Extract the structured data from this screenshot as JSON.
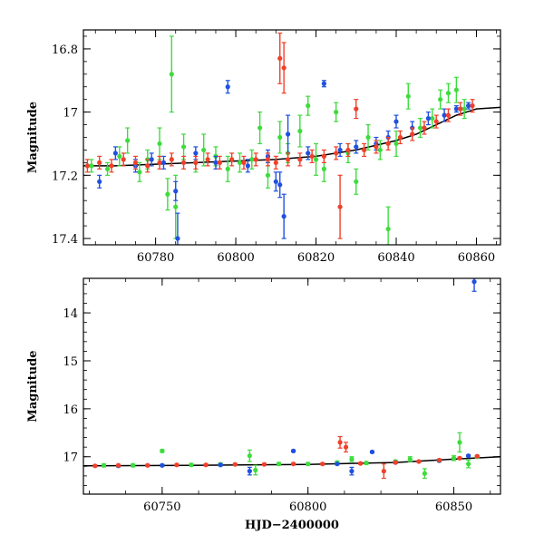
{
  "colors": {
    "green": "#3ddc3d",
    "blue": "#1f50e0",
    "red": "#f0402a",
    "model": "#000000"
  },
  "chart_data": [
    {
      "type": "scatter",
      "title": "",
      "xlabel": "",
      "ylabel": "Magnitude",
      "xlim": [
        60762,
        60866
      ],
      "ylim": [
        17.42,
        16.74
      ],
      "y_inverted": true,
      "x_ticks": [
        60780,
        60800,
        60820,
        60840,
        60860
      ],
      "x_tick_labels": [
        "60780",
        "60800",
        "60820",
        "60840",
        "60860"
      ],
      "y_ticks": [
        16.8,
        17,
        17.2,
        17.4
      ],
      "y_tick_labels": [
        "16.8",
        "17",
        "17.2",
        "17.4"
      ],
      "grid": false,
      "model_curve": {
        "x": [
          60762,
          60770,
          60780,
          60790,
          60800,
          60810,
          60820,
          60830,
          60840,
          60845,
          60850,
          60855,
          60860,
          60866
        ],
        "y": [
          17.17,
          17.17,
          17.165,
          17.16,
          17.155,
          17.15,
          17.14,
          17.12,
          17.09,
          17.07,
          17.04,
          17.01,
          16.99,
          16.985
        ]
      },
      "series": [
        {
          "color": "green",
          "points": [
            [
              60764,
              17.17,
              0.02
            ],
            [
              60768,
              17.18,
              0.02
            ],
            [
              60771,
              17.14,
              0.03
            ],
            [
              60773,
              17.09,
              0.04
            ],
            [
              60776,
              17.19,
              0.03
            ],
            [
              60778,
              17.15,
              0.03
            ],
            [
              60781,
              17.1,
              0.05
            ],
            [
              60783,
              17.26,
              0.05
            ],
            [
              60784,
              16.88,
              0.12
            ],
            [
              60785,
              17.3,
              0.1
            ],
            [
              60787,
              17.11,
              0.04
            ],
            [
              60790,
              17.16,
              0.03
            ],
            [
              60792,
              17.12,
              0.05
            ],
            [
              60795,
              17.14,
              0.03
            ],
            [
              60798,
              17.18,
              0.04
            ],
            [
              60801,
              17.16,
              0.03
            ],
            [
              60804,
              17.15,
              0.03
            ],
            [
              60806,
              17.05,
              0.05
            ],
            [
              60808,
              17.2,
              0.04
            ],
            [
              60811,
              17.08,
              0.05
            ],
            [
              60813,
              17.13,
              0.03
            ],
            [
              60816,
              17.06,
              0.05
            ],
            [
              60818,
              16.98,
              0.03
            ],
            [
              60820,
              17.15,
              0.05
            ],
            [
              60822,
              17.18,
              0.04
            ],
            [
              60825,
              17.0,
              0.03
            ],
            [
              60828,
              17.13,
              0.03
            ],
            [
              60830,
              17.22,
              0.04
            ],
            [
              60833,
              17.08,
              0.04
            ],
            [
              60836,
              17.12,
              0.03
            ],
            [
              60838,
              17.37,
              0.07
            ],
            [
              60840,
              17.1,
              0.04
            ],
            [
              60843,
              16.95,
              0.04
            ],
            [
              60846,
              17.05,
              0.03
            ],
            [
              60849,
              17.02,
              0.03
            ],
            [
              60851,
              16.96,
              0.03
            ],
            [
              60853,
              16.94,
              0.03
            ],
            [
              60855,
              16.93,
              0.04
            ],
            [
              60857,
              16.99,
              0.03
            ]
          ]
        },
        {
          "color": "blue",
          "points": [
            [
              60766,
              17.22,
              0.02
            ],
            [
              60770,
              17.13,
              0.02
            ],
            [
              60775,
              17.17,
              0.02
            ],
            [
              60779,
              17.15,
              0.02
            ],
            [
              60782,
              17.16,
              0.02
            ],
            [
              60785,
              17.25,
              0.03
            ],
            [
              60785.5,
              17.4,
              0.08
            ],
            [
              60790,
              17.13,
              0.02
            ],
            [
              60795,
              17.16,
              0.02
            ],
            [
              60798,
              16.92,
              0.02
            ],
            [
              60803,
              17.17,
              0.02
            ],
            [
              60808,
              17.14,
              0.02
            ],
            [
              60810,
              17.22,
              0.03
            ],
            [
              60811,
              17.23,
              0.04
            ],
            [
              60812,
              17.33,
              0.07
            ],
            [
              60813,
              17.07,
              0.06
            ],
            [
              60818,
              17.13,
              0.02
            ],
            [
              60822,
              16.91,
              0.01
            ],
            [
              60826,
              17.12,
              0.02
            ],
            [
              60830,
              17.11,
              0.02
            ],
            [
              60835,
              17.1,
              0.02
            ],
            [
              60838,
              17.08,
              0.02
            ],
            [
              60840,
              17.03,
              0.02
            ],
            [
              60844,
              17.05,
              0.02
            ],
            [
              60848,
              17.02,
              0.02
            ],
            [
              60852,
              17.01,
              0.02
            ],
            [
              60855,
              16.99,
              0.01
            ],
            [
              60858,
              16.98,
              0.01
            ]
          ]
        },
        {
          "color": "red",
          "points": [
            [
              60763,
              17.17,
              0.02
            ],
            [
              60766,
              17.16,
              0.02
            ],
            [
              60769,
              17.17,
              0.02
            ],
            [
              60772,
              17.15,
              0.02
            ],
            [
              60775,
              17.16,
              0.02
            ],
            [
              60778,
              17.17,
              0.02
            ],
            [
              60781,
              17.16,
              0.02
            ],
            [
              60784,
              17.15,
              0.02
            ],
            [
              60787,
              17.16,
              0.02
            ],
            [
              60790,
              17.16,
              0.02
            ],
            [
              60793,
              17.15,
              0.02
            ],
            [
              60796,
              17.16,
              0.02
            ],
            [
              60799,
              17.15,
              0.02
            ],
            [
              60802,
              17.16,
              0.02
            ],
            [
              60805,
              17.15,
              0.02
            ],
            [
              60808,
              17.15,
              0.02
            ],
            [
              60810,
              17.16,
              0.02
            ],
            [
              60811,
              16.83,
              0.08
            ],
            [
              60812,
              16.86,
              0.08
            ],
            [
              60813,
              17.15,
              0.02
            ],
            [
              60816,
              17.15,
              0.02
            ],
            [
              60819,
              17.14,
              0.02
            ],
            [
              60822,
              17.14,
              0.02
            ],
            [
              60825,
              17.13,
              0.02
            ],
            [
              60826,
              17.3,
              0.1
            ],
            [
              60828,
              17.12,
              0.02
            ],
            [
              60830,
              16.99,
              0.03
            ],
            [
              60832,
              17.12,
              0.02
            ],
            [
              60835,
              17.11,
              0.02
            ],
            [
              60838,
              17.1,
              0.02
            ],
            [
              60841,
              17.08,
              0.02
            ],
            [
              60844,
              17.07,
              0.02
            ],
            [
              60847,
              17.05,
              0.02
            ],
            [
              60850,
              17.03,
              0.02
            ],
            [
              60853,
              17.01,
              0.02
            ],
            [
              60856,
              16.99,
              0.02
            ],
            [
              60859,
              16.98,
              0.02
            ]
          ]
        }
      ]
    },
    {
      "type": "scatter",
      "title": "",
      "xlabel": "HJD−2400000",
      "ylabel": "Magnitude",
      "xlim": [
        60723,
        60866
      ],
      "ylim": [
        17.78,
        13.28
      ],
      "y_inverted": true,
      "x_ticks": [
        60750,
        60800,
        60850
      ],
      "x_tick_labels": [
        "60750",
        "60800",
        "60850"
      ],
      "y_ticks": [
        14,
        15,
        16,
        17
      ],
      "y_tick_labels": [
        "14",
        "15",
        "16",
        "17"
      ],
      "grid": false,
      "model_curve": {
        "x": [
          60723,
          60760,
          60800,
          60830,
          60850,
          60866
        ],
        "y": [
          17.19,
          17.18,
          17.16,
          17.12,
          17.05,
          17.0
        ]
      },
      "series": [
        {
          "color": "green",
          "points": [
            [
              60730,
              17.18,
              0.03
            ],
            [
              60740,
              17.18,
              0.03
            ],
            [
              60750,
              16.88,
              0.03
            ],
            [
              60760,
              17.17,
              0.03
            ],
            [
              60770,
              17.16,
              0.03
            ],
            [
              60780,
              16.98,
              0.12
            ],
            [
              60782,
              17.28,
              0.1
            ],
            [
              60790,
              17.15,
              0.03
            ],
            [
              60800,
              17.15,
              0.03
            ],
            [
              60810,
              17.12,
              0.03
            ],
            [
              60815,
              17.05,
              0.05
            ],
            [
              60820,
              17.13,
              0.03
            ],
            [
              60830,
              17.1,
              0.03
            ],
            [
              60835,
              17.05,
              0.05
            ],
            [
              60840,
              17.35,
              0.1
            ],
            [
              60845,
              17.08,
              0.03
            ],
            [
              60850,
              17.03,
              0.05
            ],
            [
              60852,
              16.7,
              0.2
            ],
            [
              60855,
              17.15,
              0.08
            ],
            [
              60858,
              17.0,
              0.03
            ]
          ]
        },
        {
          "color": "blue",
          "points": [
            [
              60735,
              17.19,
              0.02
            ],
            [
              60750,
              17.18,
              0.02
            ],
            [
              60770,
              17.17,
              0.02
            ],
            [
              60780,
              17.3,
              0.08
            ],
            [
              60795,
              16.88,
              0.02
            ],
            [
              60810,
              17.15,
              0.02
            ],
            [
              60815,
              17.3,
              0.08
            ],
            [
              60822,
              16.9,
              0.02
            ],
            [
              60830,
              17.12,
              0.02
            ],
            [
              60845,
              17.08,
              0.02
            ],
            [
              60855,
              16.98,
              0.02
            ],
            [
              60857,
              13.35,
              0.2
            ]
          ]
        },
        {
          "color": "red",
          "points": [
            [
              60727,
              17.19,
              0.02
            ],
            [
              60735,
              17.18,
              0.02
            ],
            [
              60745,
              17.18,
              0.02
            ],
            [
              60755,
              17.17,
              0.02
            ],
            [
              60765,
              17.17,
              0.02
            ],
            [
              60775,
              17.16,
              0.02
            ],
            [
              60785,
              17.16,
              0.02
            ],
            [
              60795,
              17.15,
              0.02
            ],
            [
              60805,
              17.15,
              0.02
            ],
            [
              60811,
              16.7,
              0.12
            ],
            [
              60813,
              16.8,
              0.1
            ],
            [
              60818,
              17.14,
              0.02
            ],
            [
              60826,
              17.3,
              0.15
            ],
            [
              60830,
              17.12,
              0.02
            ],
            [
              60838,
              17.1,
              0.02
            ],
            [
              60845,
              17.07,
              0.02
            ],
            [
              60852,
              17.03,
              0.02
            ],
            [
              60858,
              16.99,
              0.02
            ]
          ]
        }
      ]
    }
  ]
}
